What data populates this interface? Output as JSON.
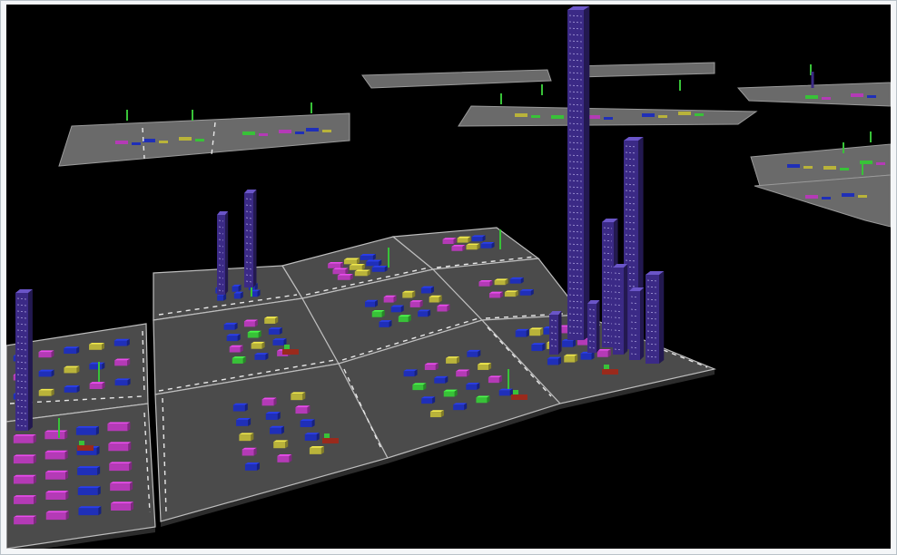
{
  "colors": {
    "background": "#000000",
    "tile_fill": "#4b4b4b",
    "tile_edge": "#bdbdbd",
    "tile_side": "#2c2c2c",
    "road_dash": "#e8e8e8",
    "tower_purple": "#3b2a86",
    "tower_highlight": "#6a55c8",
    "tower_marks": "#d6d0ff",
    "block_blue": "#1f2fb8",
    "block_magenta": "#b43ab6",
    "block_yellow": "#b9b33a",
    "block_green": "#38c238",
    "block_red": "#9a2a1c"
  },
  "scene": {
    "description_name": "3d-software-city-visualization",
    "icons": [
      "city-tile-icon",
      "tower-icon",
      "building-block-icon",
      "flag-icon"
    ]
  }
}
